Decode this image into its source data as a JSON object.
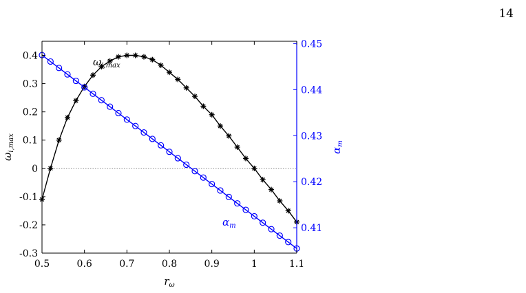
{
  "page": {
    "number": "14"
  },
  "colors": {
    "black_series": "#000000",
    "blue_series": "#0000ff",
    "zero_line": "#888888"
  },
  "chart_data": {
    "type": "line",
    "x": [
      0.5,
      0.52,
      0.54,
      0.56,
      0.58,
      0.6,
      0.62,
      0.64,
      0.66,
      0.68,
      0.7,
      0.72,
      0.74,
      0.76,
      0.78,
      0.8,
      0.82,
      0.84,
      0.86,
      0.88,
      0.9,
      0.92,
      0.94,
      0.96,
      0.98,
      1.0,
      1.02,
      1.04,
      1.06,
      1.08,
      1.1
    ],
    "xlabel": {
      "main": "r",
      "sub": "ω"
    },
    "xlim": [
      0.5,
      1.1
    ],
    "xticks": [
      "0.5",
      "0.6",
      "0.7",
      "0.8",
      "0.9",
      "1",
      "1.1"
    ],
    "ylabel_left": {
      "main": "ω",
      "sub": "i,max"
    },
    "ylim_left": [
      -0.3,
      0.45
    ],
    "yticks_left": [
      "-0.3",
      "-0.2",
      "-0.1",
      "0",
      "0.1",
      "0.2",
      "0.3",
      "0.4"
    ],
    "ylabel_right": {
      "main": "α",
      "sub": "m"
    },
    "ylim_right": [
      0.4045,
      0.4505
    ],
    "yticks_right": [
      "0.41",
      "0.42",
      "0.43",
      "0.44",
      "0.45"
    ],
    "zero_line": true,
    "series": [
      {
        "name": "ω_i,max",
        "label_main": "ω",
        "label_sub": "i,max",
        "axis": "left",
        "marker": "asterisk",
        "color": "#000000",
        "values": [
          -0.11,
          0.0,
          0.1,
          0.18,
          0.24,
          0.29,
          0.33,
          0.36,
          0.38,
          0.395,
          0.4,
          0.4,
          0.395,
          0.385,
          0.365,
          0.34,
          0.315,
          0.285,
          0.255,
          0.22,
          0.19,
          0.15,
          0.115,
          0.075,
          0.035,
          0.0,
          -0.04,
          -0.075,
          -0.115,
          -0.15,
          -0.19
        ]
      },
      {
        "name": "α_m",
        "label_main": "α",
        "label_sub": "m",
        "axis": "right",
        "marker": "circle",
        "color": "#0000ff",
        "values": [
          0.4475,
          0.4461,
          0.4447,
          0.4433,
          0.4419,
          0.4405,
          0.4391,
          0.4377,
          0.4363,
          0.4349,
          0.4335,
          0.4321,
          0.4307,
          0.4293,
          0.4279,
          0.4265,
          0.4251,
          0.4237,
          0.4223,
          0.4209,
          0.4195,
          0.4181,
          0.4167,
          0.4153,
          0.4139,
          0.4125,
          0.4111,
          0.4097,
          0.4083,
          0.4069,
          0.4055
        ]
      }
    ]
  }
}
